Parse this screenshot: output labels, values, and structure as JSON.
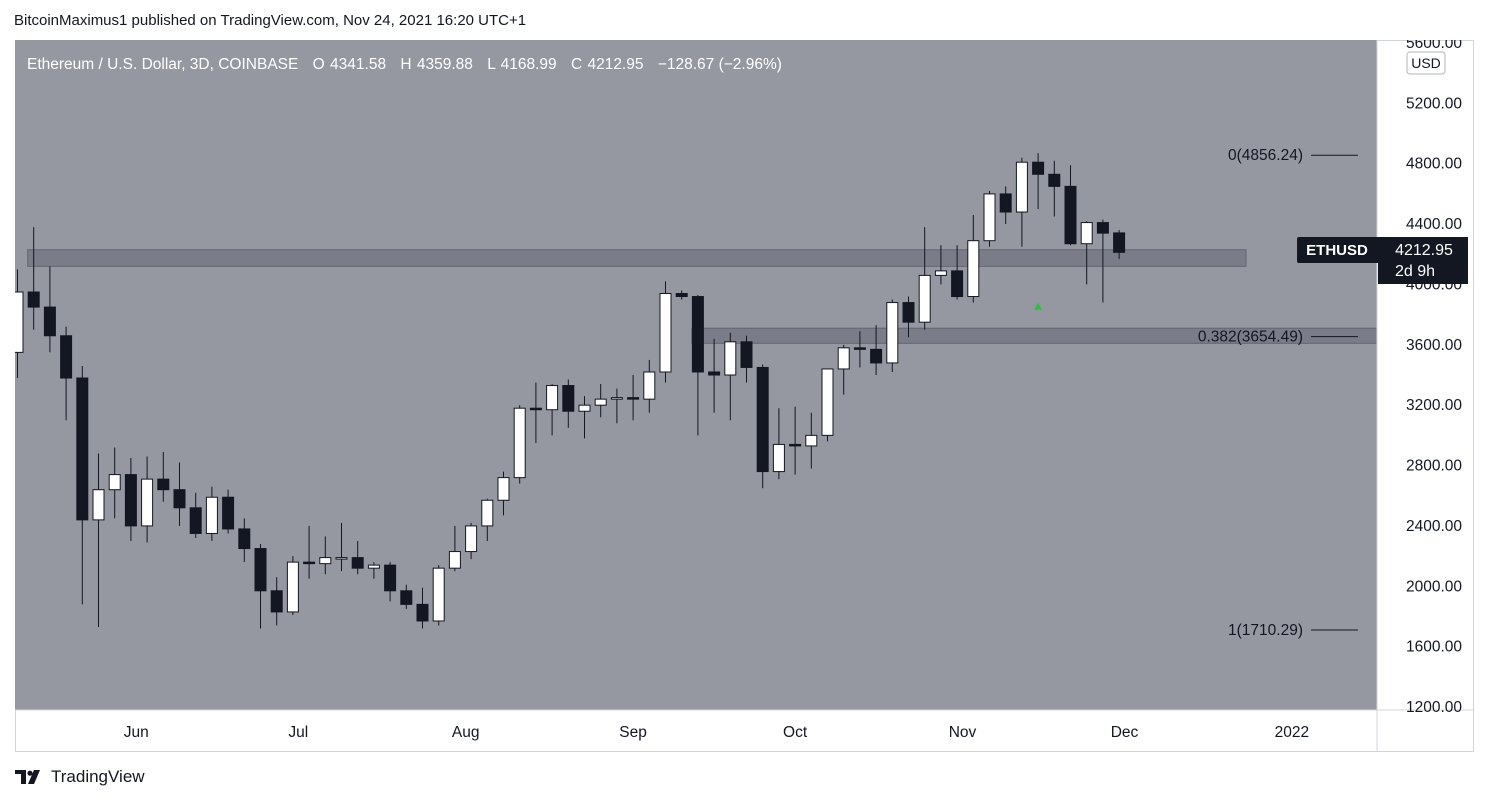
{
  "header": {
    "text": "BitcoinMaximus1 published on TradingView.com, Nov 24, 2021 16:20 UTC+1"
  },
  "legend": {
    "symbol": "Ethereum / U.S. Dollar, 3D, COINBASE",
    "o_label": "O",
    "o_value": "4341.58",
    "h_label": "H",
    "h_value": "4359.88",
    "l_label": "L",
    "l_value": "4168.99",
    "c_label": "C",
    "c_value": "4212.95",
    "change": "−128.67 (−2.96%)"
  },
  "price_axis": {
    "currency": "USD",
    "ticks": [
      "5600.00",
      "5200.00",
      "4800.00",
      "4400.00",
      "4000.00",
      "3600.00",
      "3200.00",
      "2800.00",
      "2400.00",
      "2000.00",
      "1600.00",
      "1200.00"
    ]
  },
  "time_axis": {
    "labels": [
      "Jun",
      "Jul",
      "Aug",
      "Sep",
      "Oct",
      "Nov",
      "Dec",
      "2022"
    ]
  },
  "price_tag": {
    "symbol": "ETHUSD",
    "price": "4212.95",
    "countdown": "2d 9h"
  },
  "fib_levels": [
    {
      "label": "0(4856.24)",
      "price": 4856.24
    },
    {
      "label": "0.382(3654.49)",
      "price": 3654.49
    },
    {
      "label": "1(1710.29)",
      "price": 1710.29
    }
  ],
  "colors": {
    "background": "#9598a1",
    "bull_body": "#ffffff",
    "bear_body": "#131722",
    "wick": "#131722",
    "zone": "#787b86",
    "arrow": "#26c23a",
    "tag_bg": "#131722"
  },
  "footer": {
    "brand": "TradingView",
    "logo_icon": "tradingview-logo-icon"
  },
  "chart_data": {
    "type": "candlestick",
    "symbol": "ETHUSD",
    "timeframe": "3D",
    "exchange": "COINBASE",
    "currency": "USD",
    "ylim": [
      1200,
      5600
    ],
    "x_start": "2021-05-10",
    "resistance_zone": [
      4120,
      4230
    ],
    "support_zone": [
      3610,
      3710
    ],
    "arrow": {
      "date": "2021-11-15",
      "price": 3860,
      "direction": "up"
    },
    "candles": [
      {
        "t": "2021-05-10",
        "o": 3550,
        "h": 4100,
        "l": 3380,
        "c": 3950
      },
      {
        "t": "2021-05-13",
        "o": 3950,
        "h": 4380,
        "l": 3700,
        "c": 3850
      },
      {
        "t": "2021-05-16",
        "o": 3850,
        "h": 4120,
        "l": 3550,
        "c": 3660
      },
      {
        "t": "2021-05-19",
        "o": 3660,
        "h": 3720,
        "l": 3100,
        "c": 3380
      },
      {
        "t": "2021-05-22",
        "o": 3380,
        "h": 3460,
        "l": 1880,
        "c": 2440
      },
      {
        "t": "2021-05-25",
        "o": 2440,
        "h": 2880,
        "l": 1730,
        "c": 2640
      },
      {
        "t": "2021-05-28",
        "o": 2640,
        "h": 2920,
        "l": 2450,
        "c": 2740
      },
      {
        "t": "2021-05-31",
        "o": 2740,
        "h": 2850,
        "l": 2300,
        "c": 2400
      },
      {
        "t": "2021-06-03",
        "o": 2400,
        "h": 2860,
        "l": 2290,
        "c": 2710
      },
      {
        "t": "2021-06-06",
        "o": 2710,
        "h": 2890,
        "l": 2560,
        "c": 2640
      },
      {
        "t": "2021-06-09",
        "o": 2640,
        "h": 2820,
        "l": 2400,
        "c": 2520
      },
      {
        "t": "2021-06-12",
        "o": 2520,
        "h": 2620,
        "l": 2320,
        "c": 2350
      },
      {
        "t": "2021-06-15",
        "o": 2350,
        "h": 2660,
        "l": 2300,
        "c": 2590
      },
      {
        "t": "2021-06-18",
        "o": 2590,
        "h": 2640,
        "l": 2350,
        "c": 2380
      },
      {
        "t": "2021-06-21",
        "o": 2380,
        "h": 2450,
        "l": 2160,
        "c": 2250
      },
      {
        "t": "2021-06-24",
        "o": 2250,
        "h": 2280,
        "l": 1720,
        "c": 1970
      },
      {
        "t": "2021-06-27",
        "o": 1970,
        "h": 2060,
        "l": 1740,
        "c": 1830
      },
      {
        "t": "2021-06-30",
        "o": 1830,
        "h": 2200,
        "l": 1810,
        "c": 2160
      },
      {
        "t": "2021-07-03",
        "o": 2160,
        "h": 2400,
        "l": 2050,
        "c": 2150
      },
      {
        "t": "2021-07-06",
        "o": 2150,
        "h": 2330,
        "l": 2080,
        "c": 2190
      },
      {
        "t": "2021-07-09",
        "o": 2190,
        "h": 2420,
        "l": 2100,
        "c": 2190
      },
      {
        "t": "2021-07-12",
        "o": 2190,
        "h": 2300,
        "l": 2080,
        "c": 2120
      },
      {
        "t": "2021-07-15",
        "o": 2120,
        "h": 2160,
        "l": 2050,
        "c": 2140
      },
      {
        "t": "2021-07-18",
        "o": 2140,
        "h": 2160,
        "l": 1900,
        "c": 1970
      },
      {
        "t": "2021-07-21",
        "o": 1970,
        "h": 2010,
        "l": 1850,
        "c": 1880
      },
      {
        "t": "2021-07-24",
        "o": 1880,
        "h": 1990,
        "l": 1720,
        "c": 1770
      },
      {
        "t": "2021-07-27",
        "o": 1770,
        "h": 2140,
        "l": 1740,
        "c": 2120
      },
      {
        "t": "2021-07-30",
        "o": 2120,
        "h": 2400,
        "l": 2100,
        "c": 2230
      },
      {
        "t": "2021-08-02",
        "o": 2230,
        "h": 2420,
        "l": 2180,
        "c": 2400
      },
      {
        "t": "2021-08-05",
        "o": 2400,
        "h": 2580,
        "l": 2300,
        "c": 2570
      },
      {
        "t": "2021-08-08",
        "o": 2570,
        "h": 2760,
        "l": 2470,
        "c": 2720
      },
      {
        "t": "2021-08-11",
        "o": 2720,
        "h": 3200,
        "l": 2680,
        "c": 3180
      },
      {
        "t": "2021-08-14",
        "o": 3180,
        "h": 3350,
        "l": 2950,
        "c": 3170
      },
      {
        "t": "2021-08-17",
        "o": 3170,
        "h": 3340,
        "l": 3000,
        "c": 3330
      },
      {
        "t": "2021-08-20",
        "o": 3330,
        "h": 3370,
        "l": 3050,
        "c": 3160
      },
      {
        "t": "2021-08-23",
        "o": 3160,
        "h": 3260,
        "l": 2980,
        "c": 3200
      },
      {
        "t": "2021-08-26",
        "o": 3200,
        "h": 3340,
        "l": 3120,
        "c": 3240
      },
      {
        "t": "2021-08-29",
        "o": 3240,
        "h": 3310,
        "l": 3080,
        "c": 3250
      },
      {
        "t": "2021-09-01",
        "o": 3250,
        "h": 3400,
        "l": 3100,
        "c": 3240
      },
      {
        "t": "2021-09-04",
        "o": 3240,
        "h": 3500,
        "l": 3150,
        "c": 3420
      },
      {
        "t": "2021-09-07",
        "o": 3420,
        "h": 4020,
        "l": 3350,
        "c": 3940
      },
      {
        "t": "2021-09-10",
        "o": 3940,
        "h": 3960,
        "l": 3900,
        "c": 3920
      },
      {
        "t": "2021-09-13",
        "o": 3920,
        "h": 3930,
        "l": 3000,
        "c": 3420
      },
      {
        "t": "2021-09-16",
        "o": 3420,
        "h": 3640,
        "l": 3150,
        "c": 3400
      },
      {
        "t": "2021-09-19",
        "o": 3400,
        "h": 3680,
        "l": 3100,
        "c": 3620
      },
      {
        "t": "2021-09-22",
        "o": 3620,
        "h": 3660,
        "l": 3350,
        "c": 3450
      },
      {
        "t": "2021-09-25",
        "o": 3450,
        "h": 3470,
        "l": 2650,
        "c": 2760
      },
      {
        "t": "2021-09-28",
        "o": 2760,
        "h": 3180,
        "l": 2710,
        "c": 2940
      },
      {
        "t": "2021-10-01",
        "o": 2940,
        "h": 3190,
        "l": 2740,
        "c": 2930
      },
      {
        "t": "2021-10-04",
        "o": 2930,
        "h": 3150,
        "l": 2780,
        "c": 3000
      },
      {
        "t": "2021-10-07",
        "o": 3000,
        "h": 3440,
        "l": 2960,
        "c": 3440
      },
      {
        "t": "2021-10-10",
        "o": 3440,
        "h": 3600,
        "l": 3270,
        "c": 3580
      },
      {
        "t": "2021-10-13",
        "o": 3580,
        "h": 3690,
        "l": 3450,
        "c": 3570
      },
      {
        "t": "2021-10-16",
        "o": 3570,
        "h": 3730,
        "l": 3400,
        "c": 3480
      },
      {
        "t": "2021-10-19",
        "o": 3480,
        "h": 3900,
        "l": 3420,
        "c": 3880
      },
      {
        "t": "2021-10-22",
        "o": 3880,
        "h": 3920,
        "l": 3650,
        "c": 3750
      },
      {
        "t": "2021-10-25",
        "o": 3750,
        "h": 4380,
        "l": 3700,
        "c": 4060
      },
      {
        "t": "2021-10-28",
        "o": 4060,
        "h": 4260,
        "l": 4000,
        "c": 4090
      },
      {
        "t": "2021-10-31",
        "o": 4090,
        "h": 4260,
        "l": 3900,
        "c": 3920
      },
      {
        "t": "2021-11-03",
        "o": 3920,
        "h": 4460,
        "l": 3880,
        "c": 4290
      },
      {
        "t": "2021-11-06",
        "o": 4290,
        "h": 4620,
        "l": 4250,
        "c": 4600
      },
      {
        "t": "2021-11-09",
        "o": 4600,
        "h": 4650,
        "l": 4400,
        "c": 4480
      },
      {
        "t": "2021-11-12",
        "o": 4480,
        "h": 4840,
        "l": 4250,
        "c": 4810
      },
      {
        "t": "2021-11-15",
        "o": 4810,
        "h": 4870,
        "l": 4500,
        "c": 4730
      },
      {
        "t": "2021-11-18",
        "o": 4730,
        "h": 4820,
        "l": 4450,
        "c": 4650
      },
      {
        "t": "2021-11-21",
        "o": 4650,
        "h": 4790,
        "l": 4260,
        "c": 4270
      },
      {
        "t": "2021-11-24",
        "o": 4270,
        "h": 4420,
        "l": 4000,
        "c": 4410
      },
      {
        "t": "2021-11-27",
        "o": 4410,
        "h": 4430,
        "l": 3880,
        "c": 4340
      },
      {
        "t": "2021-11-30",
        "o": 4341.58,
        "h": 4359.88,
        "l": 4168.99,
        "c": 4212.95
      }
    ]
  }
}
